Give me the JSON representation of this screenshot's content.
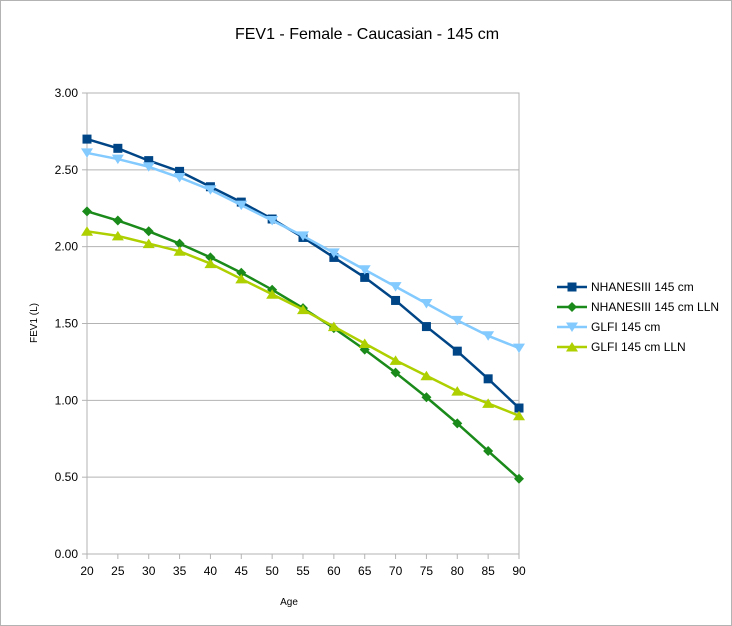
{
  "chart_data": {
    "type": "line",
    "title": "FEV1 - Female - Caucasian - 145 cm",
    "xlabel": "Age",
    "ylabel": "FEV1 (L)",
    "x": [
      20,
      25,
      30,
      35,
      40,
      45,
      50,
      55,
      60,
      65,
      70,
      75,
      80,
      85,
      90
    ],
    "x_tick_labels": [
      "20",
      "25",
      "30",
      "35",
      "40",
      "45",
      "50",
      "55",
      "60",
      "65",
      "70",
      "75",
      "80",
      "85",
      "90"
    ],
    "xlim": [
      20,
      90
    ],
    "ylim": [
      0,
      3
    ],
    "y_ticks": [
      0,
      0.5,
      1.0,
      1.5,
      2.0,
      2.5,
      3.0
    ],
    "y_tick_labels": [
      "0.00",
      "0.50",
      "1.00",
      "1.50",
      "2.00",
      "2.50",
      "3.00"
    ],
    "grid": "horizontal",
    "legend_position": "right",
    "series": [
      {
        "name": "NHANESIII 145 cm",
        "color": "#004586",
        "marker": "square",
        "values": [
          2.7,
          2.64,
          2.56,
          2.49,
          2.39,
          2.29,
          2.18,
          2.06,
          1.93,
          1.8,
          1.65,
          1.48,
          1.32,
          1.14,
          0.95
        ]
      },
      {
        "name": "NHANESIII 145 cm LLN",
        "color": "#1a8a1a",
        "marker": "diamond",
        "values": [
          2.23,
          2.17,
          2.1,
          2.02,
          1.93,
          1.83,
          1.72,
          1.6,
          1.47,
          1.33,
          1.18,
          1.02,
          0.85,
          0.67,
          0.49
        ]
      },
      {
        "name": "GLFI 145 cm",
        "color": "#83caff",
        "marker": "triangle-down",
        "values": [
          2.61,
          2.57,
          2.52,
          2.45,
          2.37,
          2.27,
          2.17,
          2.07,
          1.96,
          1.85,
          1.74,
          1.63,
          1.52,
          1.42,
          1.34
        ]
      },
      {
        "name": "GLFI 145 cm LLN",
        "color": "#aecf00",
        "marker": "triangle-up",
        "values": [
          2.1,
          2.07,
          2.02,
          1.97,
          1.89,
          1.79,
          1.69,
          1.59,
          1.48,
          1.37,
          1.26,
          1.16,
          1.06,
          0.98,
          0.9
        ]
      }
    ]
  }
}
